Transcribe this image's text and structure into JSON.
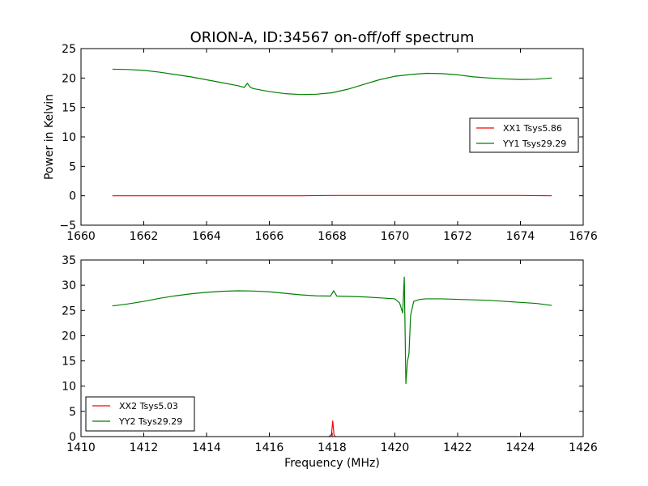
{
  "chart_data": [
    {
      "type": "line",
      "title": "ORION-A, ID:34567 on-off/off spectrum",
      "xlabel": "",
      "ylabel": "Power in Kelvin",
      "xlim": [
        1660,
        1676
      ],
      "ylim": [
        -5,
        25
      ],
      "xticks": [
        "1660",
        "1662",
        "1664",
        "1666",
        "1668",
        "1670",
        "1672",
        "1674",
        "1676"
      ],
      "yticks": [
        "−5",
        "0",
        "5",
        "10",
        "15",
        "20",
        "25"
      ],
      "grid": false,
      "legend_position": "center-right",
      "series": [
        {
          "name": "XX1 Tsys5.86",
          "color": "#ff0000",
          "x": [
            1661.0,
            1664.0,
            1667.0,
            1668.0,
            1670.0,
            1672.0,
            1673.0,
            1674.0,
            1675.0
          ],
          "y": [
            0.0,
            0.0,
            0.0,
            0.05,
            0.05,
            0.05,
            0.05,
            0.05,
            0.0
          ]
        },
        {
          "name": "YY1 Tsys29.29",
          "color": "#008000",
          "x": [
            1661.0,
            1661.5,
            1662.0,
            1662.5,
            1663.0,
            1663.5,
            1664.0,
            1664.5,
            1665.0,
            1665.2,
            1665.3,
            1665.4,
            1665.5,
            1666.0,
            1666.5,
            1667.0,
            1667.5,
            1668.0,
            1668.5,
            1669.0,
            1669.5,
            1670.0,
            1670.5,
            1671.0,
            1671.5,
            1672.0,
            1672.5,
            1673.0,
            1673.5,
            1674.0,
            1674.5,
            1675.0
          ],
          "y": [
            21.5,
            21.45,
            21.3,
            21.0,
            20.6,
            20.2,
            19.7,
            19.2,
            18.7,
            18.4,
            19.1,
            18.4,
            18.2,
            17.7,
            17.35,
            17.2,
            17.25,
            17.5,
            18.1,
            18.9,
            19.7,
            20.3,
            20.6,
            20.8,
            20.75,
            20.55,
            20.2,
            20.0,
            19.85,
            19.75,
            19.8,
            20.0
          ]
        }
      ]
    },
    {
      "type": "line",
      "title": "",
      "xlabel": "Frequency (MHz)",
      "ylabel": "",
      "xlim": [
        1410,
        1426
      ],
      "ylim": [
        0,
        35
      ],
      "xticks": [
        "1410",
        "1412",
        "1414",
        "1416",
        "1418",
        "1420",
        "1422",
        "1424",
        "1426"
      ],
      "yticks": [
        "0",
        "5",
        "10",
        "15",
        "20",
        "25",
        "30",
        "35"
      ],
      "grid": false,
      "legend_position": "bottom-left",
      "series": [
        {
          "name": "XX2 Tsys5.03",
          "color": "#ff0000",
          "x": [
            1417.9,
            1417.98,
            1418.02,
            1418.06,
            1418.1
          ],
          "y": [
            0,
            0.4,
            3.1,
            0.4,
            0
          ]
        },
        {
          "name": "YY2 Tsys29.29",
          "color": "#008000",
          "x": [
            1411.0,
            1411.5,
            1412.0,
            1412.5,
            1413.0,
            1413.5,
            1414.0,
            1414.5,
            1415.0,
            1415.5,
            1416.0,
            1416.5,
            1417.0,
            1417.5,
            1417.95,
            1418.05,
            1418.15,
            1418.5,
            1419.0,
            1419.5,
            1420.0,
            1420.15,
            1420.25,
            1420.3,
            1420.35,
            1420.4,
            1420.45,
            1420.5,
            1420.6,
            1420.8,
            1421.0,
            1421.5,
            1422.0,
            1422.5,
            1423.0,
            1423.5,
            1424.0,
            1424.5,
            1425.0
          ],
          "y": [
            25.9,
            26.3,
            26.8,
            27.4,
            27.9,
            28.3,
            28.6,
            28.8,
            28.9,
            28.85,
            28.7,
            28.4,
            28.1,
            27.9,
            27.85,
            28.9,
            27.85,
            27.8,
            27.7,
            27.5,
            27.3,
            26.5,
            24.5,
            31.6,
            10.5,
            14.8,
            16.5,
            24.0,
            26.8,
            27.2,
            27.3,
            27.3,
            27.2,
            27.1,
            27.0,
            26.8,
            26.6,
            26.4,
            26.0
          ]
        }
      ]
    }
  ]
}
